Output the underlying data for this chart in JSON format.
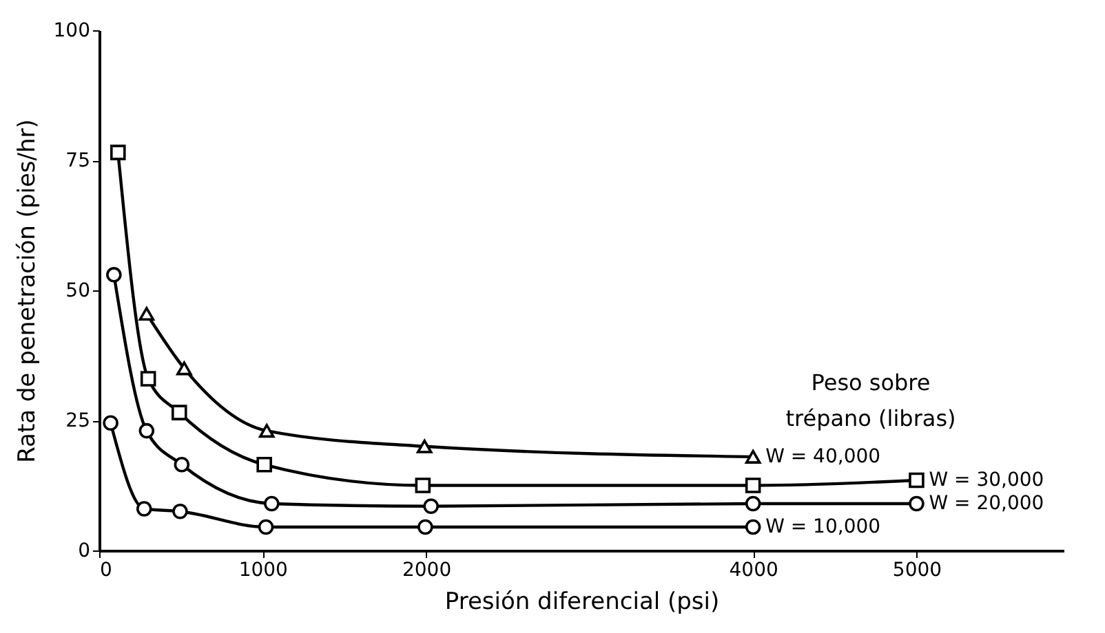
{
  "chart_data": {
    "type": "line",
    "xlabel": "Presión diferencial (psi)",
    "ylabel": "Rata de penetración (pies/hr)",
    "legend_title": "Peso sobre trépano (libras)",
    "xlim": [
      0,
      5900
    ],
    "xticks": [
      0,
      1000,
      2000,
      4000,
      5000
    ],
    "ylim": [
      0,
      100
    ],
    "yticks": [
      0,
      25,
      50,
      75,
      100
    ],
    "grid": false,
    "line_style": "solid",
    "series": [
      {
        "name": "W = 40,000",
        "color": "#000000",
        "marker": "triangle",
        "x": [
          290,
          520,
          1025,
          1990,
          4000
        ],
        "values": [
          45.5,
          35,
          23,
          20,
          18
        ]
      },
      {
        "name": "W = 30,000",
        "color": "#000000",
        "marker": "square",
        "x": [
          115,
          300,
          490,
          1010,
          1980,
          4000,
          5000
        ],
        "values": [
          76.5,
          33,
          26.5,
          16.5,
          12.5,
          12.5,
          13.5
        ]
      },
      {
        "name": "W = 20,000",
        "color": "#000000",
        "marker": "circle",
        "x": [
          90,
          290,
          505,
          1055,
          2030,
          4000,
          5000
        ],
        "values": [
          53,
          23,
          16.5,
          9,
          8.5,
          9,
          9
        ]
      },
      {
        "name": "W = 10,000",
        "color": "#000000",
        "marker": "circle",
        "x": [
          70,
          275,
          495,
          1020,
          1995,
          4000
        ],
        "values": [
          24.5,
          8,
          7.5,
          4.5,
          4.5,
          4.5
        ]
      }
    ]
  }
}
